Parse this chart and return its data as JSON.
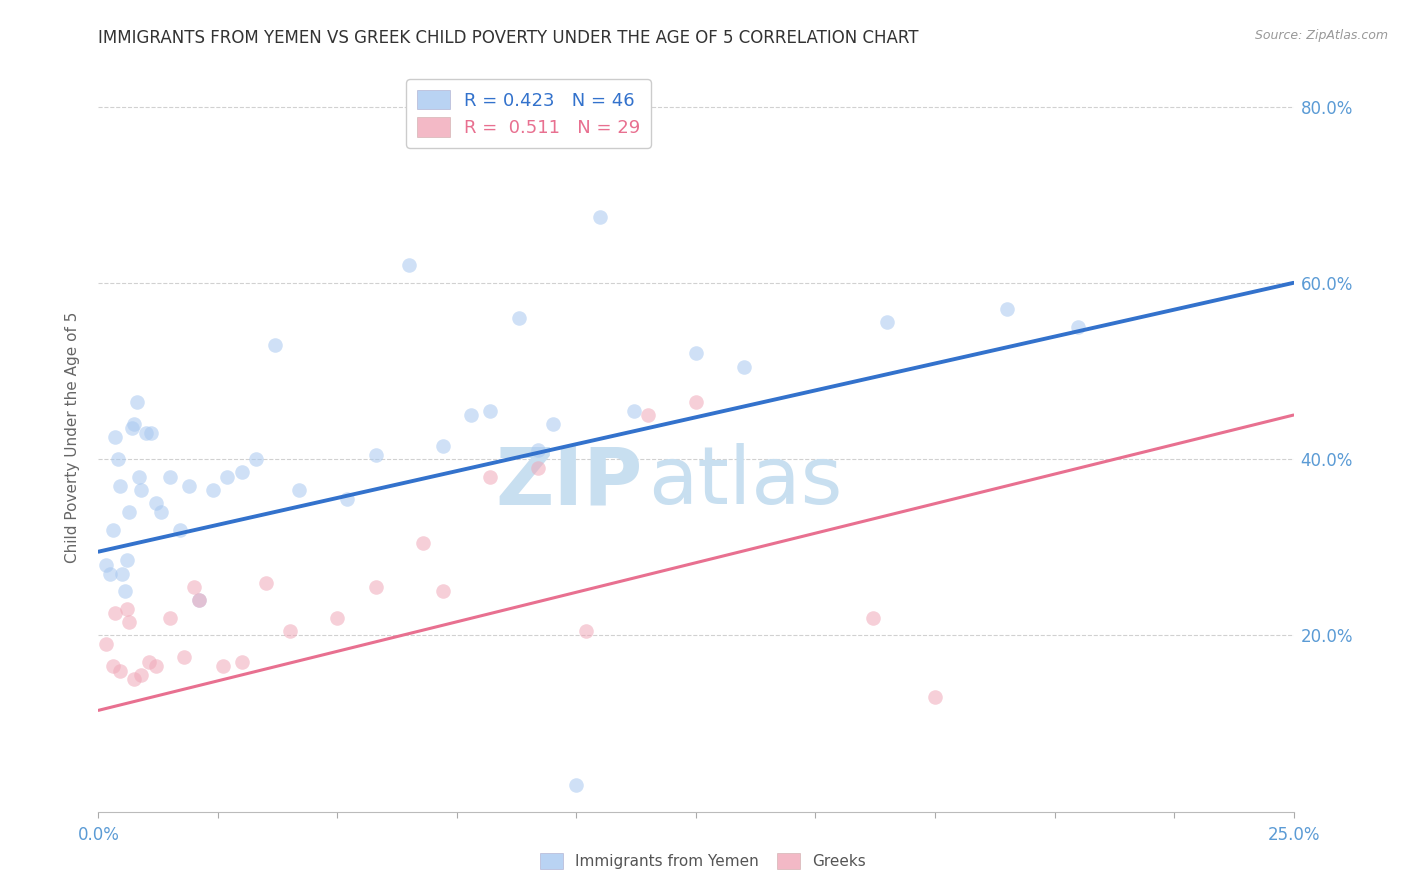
{
  "title": "IMMIGRANTS FROM YEMEN VS GREEK CHILD POVERTY UNDER THE AGE OF 5 CORRELATION CHART",
  "source": "Source: ZipAtlas.com",
  "ylabel": "Child Poverty Under the Age of 5",
  "xlim": [
    0.0,
    25.0
  ],
  "ylim": [
    0.0,
    85.0
  ],
  "yticks": [
    20.0,
    40.0,
    60.0,
    80.0
  ],
  "xticks_minor": [
    0.0,
    2.5,
    5.0,
    7.5,
    10.0,
    12.5,
    15.0,
    17.5,
    20.0,
    22.5,
    25.0
  ],
  "xtick_labels_show": [
    0.0,
    25.0
  ],
  "blue_R": "0.423",
  "blue_N": "46",
  "pink_R": "0.511",
  "pink_N": "29",
  "blue_scatter_color": "#a8c8f0",
  "pink_scatter_color": "#f0a8b8",
  "blue_line_color": "#3372cc",
  "pink_line_color": "#e87090",
  "axis_tick_color": "#5b9bd5",
  "ylabel_color": "#666666",
  "title_color": "#333333",
  "grid_color": "#cccccc",
  "watermark_zip_color": "#c8dff0",
  "watermark_atlas_color": "#c8dff0",
  "legend_label_blue_color": "#3372cc",
  "legend_label_pink_color": "#e87090",
  "legend_N_color": "#3372cc",
  "blue_scatter_x": [
    0.15,
    0.25,
    0.3,
    0.35,
    0.4,
    0.45,
    0.5,
    0.55,
    0.6,
    0.65,
    0.7,
    0.75,
    0.8,
    0.85,
    0.9,
    1.0,
    1.1,
    1.2,
    1.3,
    1.5,
    1.7,
    1.9,
    2.1,
    2.4,
    2.7,
    3.0,
    3.3,
    3.7,
    4.2,
    5.2,
    5.8,
    6.5,
    7.2,
    7.8,
    8.2,
    8.8,
    9.2,
    9.5,
    10.0,
    11.2,
    12.5,
    13.5,
    16.5,
    19.0,
    20.5,
    10.5
  ],
  "blue_scatter_y": [
    28.0,
    27.0,
    32.0,
    42.5,
    40.0,
    37.0,
    27.0,
    25.0,
    28.5,
    34.0,
    43.5,
    44.0,
    46.5,
    38.0,
    36.5,
    43.0,
    43.0,
    35.0,
    34.0,
    38.0,
    32.0,
    37.0,
    24.0,
    36.5,
    38.0,
    38.5,
    40.0,
    53.0,
    36.5,
    35.5,
    40.5,
    62.0,
    41.5,
    45.0,
    45.5,
    56.0,
    41.0,
    44.0,
    3.0,
    45.5,
    52.0,
    50.5,
    55.5,
    57.0,
    55.0,
    67.5
  ],
  "pink_scatter_x": [
    0.15,
    0.3,
    0.45,
    0.6,
    0.75,
    0.9,
    1.05,
    1.2,
    1.5,
    1.8,
    2.1,
    2.6,
    3.0,
    3.5,
    4.0,
    5.0,
    5.8,
    7.2,
    8.2,
    9.2,
    10.2,
    11.5,
    12.5,
    16.2,
    17.5,
    0.35,
    0.65,
    2.0,
    6.8
  ],
  "pink_scatter_y": [
    19.0,
    16.5,
    16.0,
    23.0,
    15.0,
    15.5,
    17.0,
    16.5,
    22.0,
    17.5,
    24.0,
    16.5,
    17.0,
    26.0,
    20.5,
    22.0,
    25.5,
    25.0,
    38.0,
    39.0,
    20.5,
    45.0,
    46.5,
    22.0,
    13.0,
    22.5,
    21.5,
    25.5,
    30.5
  ],
  "blue_regline_y": [
    29.5,
    60.0
  ],
  "pink_regline_y": [
    11.5,
    45.0
  ],
  "scatter_size": 110,
  "scatter_alpha": 0.55
}
